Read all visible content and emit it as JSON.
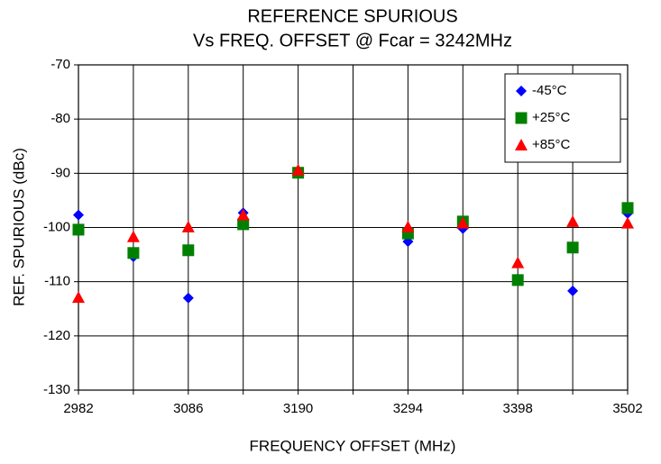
{
  "chart_data": {
    "type": "scatter",
    "title": "REFERENCE SPURIOUS",
    "subtitle": "Vs FREQ. OFFSET @ Fcar = 3242MHz",
    "x_label": "FREQUENCY OFFSET (MHz)",
    "y_label": "REF. SPURIOUS (dBc)",
    "x": [
      2982,
      3034,
      3086,
      3138,
      3190,
      3294,
      3346,
      3398,
      3450,
      3502
    ],
    "series": [
      {
        "name": "-45°C",
        "color": "#0000ff",
        "marker": "diamond",
        "values": [
          -97.7,
          -105.4,
          -113,
          -97.3,
          -90,
          -102.6,
          -100.2,
          -109.5,
          -111.7,
          -97.4
        ]
      },
      {
        "name": "+25°C",
        "color": "#008000",
        "marker": "square",
        "values": [
          -100.4,
          -104.7,
          -104.2,
          -99.4,
          -89.9,
          -101.1,
          -98.9,
          -109.7,
          -103.7,
          -96.4
        ]
      },
      {
        "name": "+85°C",
        "color": "#ff0000",
        "marker": "triangle",
        "values": [
          -112.9,
          -101.7,
          -99.9,
          -97.7,
          -89.4,
          -99.9,
          -99.2,
          -106.5,
          -98.9,
          -99.2
        ]
      }
    ],
    "xlim": [
      2982,
      3502
    ],
    "xticks": [
      2982,
      3086,
      3190,
      3294,
      3398,
      3502
    ],
    "x_minor_ticks": [
      3034,
      3138,
      3242,
      3346,
      3450
    ],
    "ylim": [
      -130,
      -70
    ],
    "yticks": [
      -130,
      -120,
      -110,
      -100,
      -90,
      -80,
      -70
    ],
    "grid": true,
    "legend": "top-right"
  }
}
